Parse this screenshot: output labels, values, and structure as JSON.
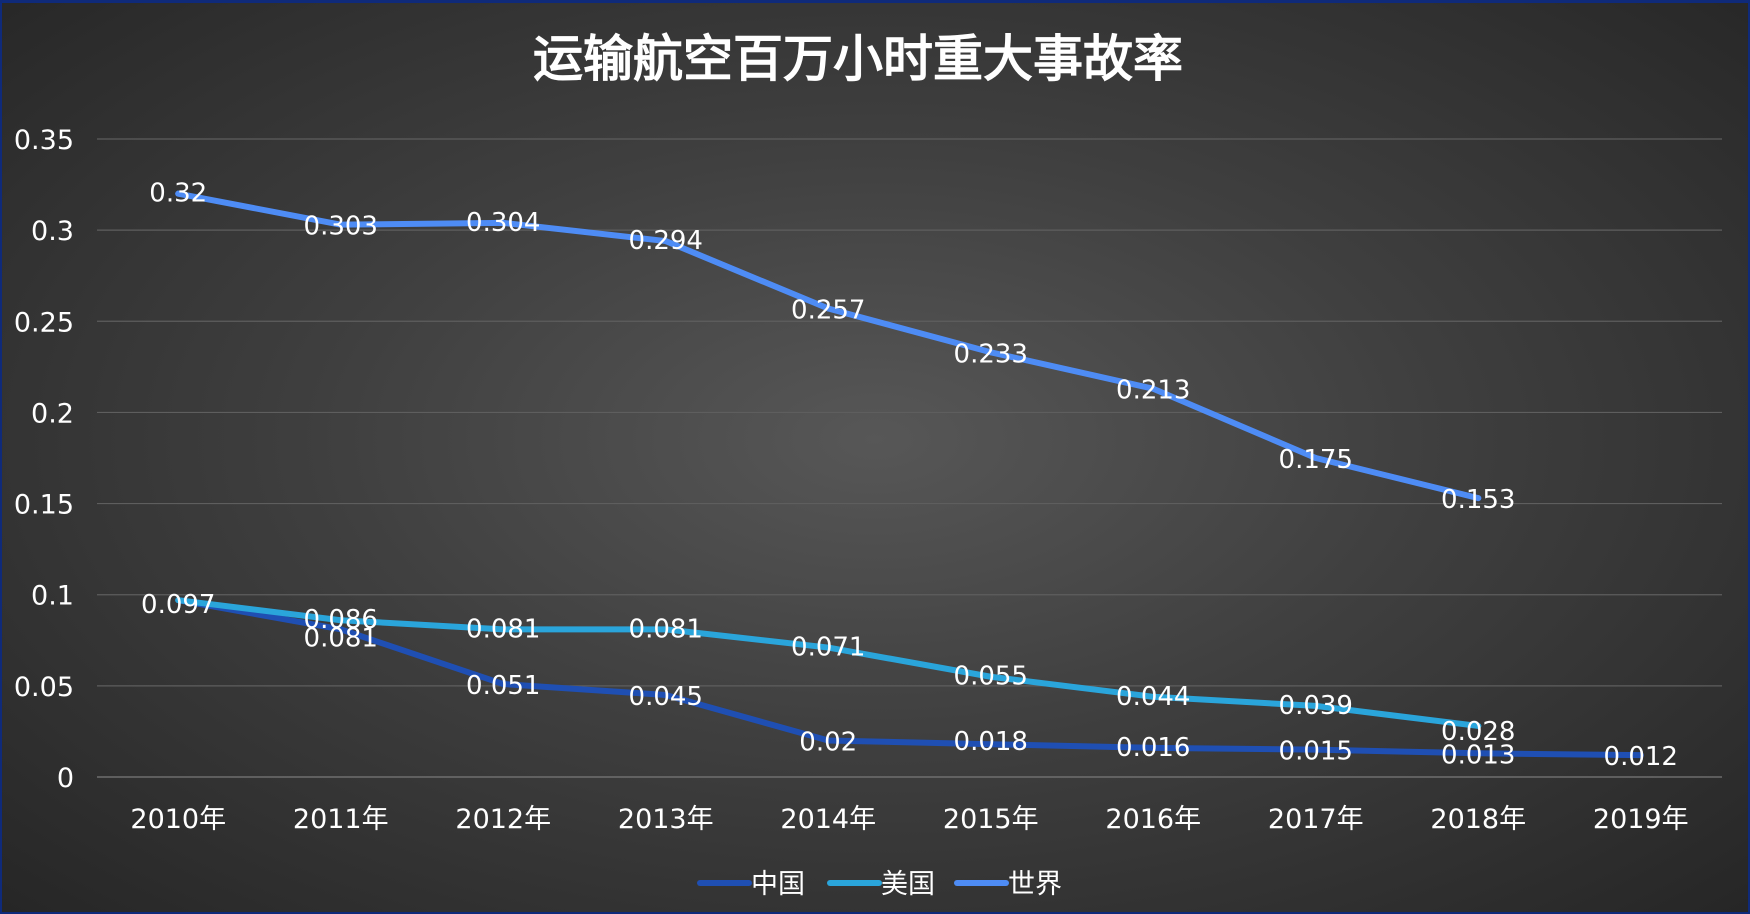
{
  "chart_data": {
    "type": "line",
    "title": "运输航空百万小时重大事故率",
    "xlabel": "",
    "ylabel": "",
    "categories": [
      "2010年",
      "2011年",
      "2012年",
      "2013年",
      "2014年",
      "2015年",
      "2016年",
      "2017年",
      "2018年",
      "2019年"
    ],
    "ylim": [
      0,
      0.35
    ],
    "yticks": [
      0,
      0.05,
      0.1,
      0.15,
      0.2,
      0.25,
      0.3,
      0.35
    ],
    "ytick_labels": [
      "0",
      "0.05",
      "0.1",
      "0.15",
      "0.2",
      "0.25",
      "0.3",
      "0.35"
    ],
    "grid": true,
    "legend_position": "bottom",
    "series": [
      {
        "name": "中国",
        "color": "#1f4fb3",
        "values": [
          0.097,
          0.081,
          0.051,
          0.045,
          0.02,
          0.018,
          0.016,
          0.015,
          0.013,
          0.012
        ],
        "labels": [
          "",
          "0.081",
          "0.051",
          "0.045",
          "0.02",
          "0.018",
          "0.016",
          "0.015",
          "0.013",
          "0.012"
        ]
      },
      {
        "name": "美国",
        "color": "#2aa5db",
        "values": [
          0.097,
          0.086,
          0.081,
          0.081,
          0.071,
          0.055,
          0.044,
          0.039,
          0.028,
          null
        ],
        "labels": [
          "0.097",
          "0.086",
          "0.081",
          "0.081",
          "0.071",
          "0.055",
          "0.044",
          "0.039",
          "0.028",
          ""
        ]
      },
      {
        "name": "世界",
        "color": "#4e8cf5",
        "values": [
          0.32,
          0.303,
          0.304,
          0.294,
          0.257,
          0.233,
          0.213,
          0.175,
          0.153,
          null
        ],
        "labels": [
          "0.32",
          "0.303",
          "0.304",
          "0.294",
          "0.257",
          "0.233",
          "0.213",
          "0.175",
          "0.153",
          ""
        ]
      }
    ]
  }
}
